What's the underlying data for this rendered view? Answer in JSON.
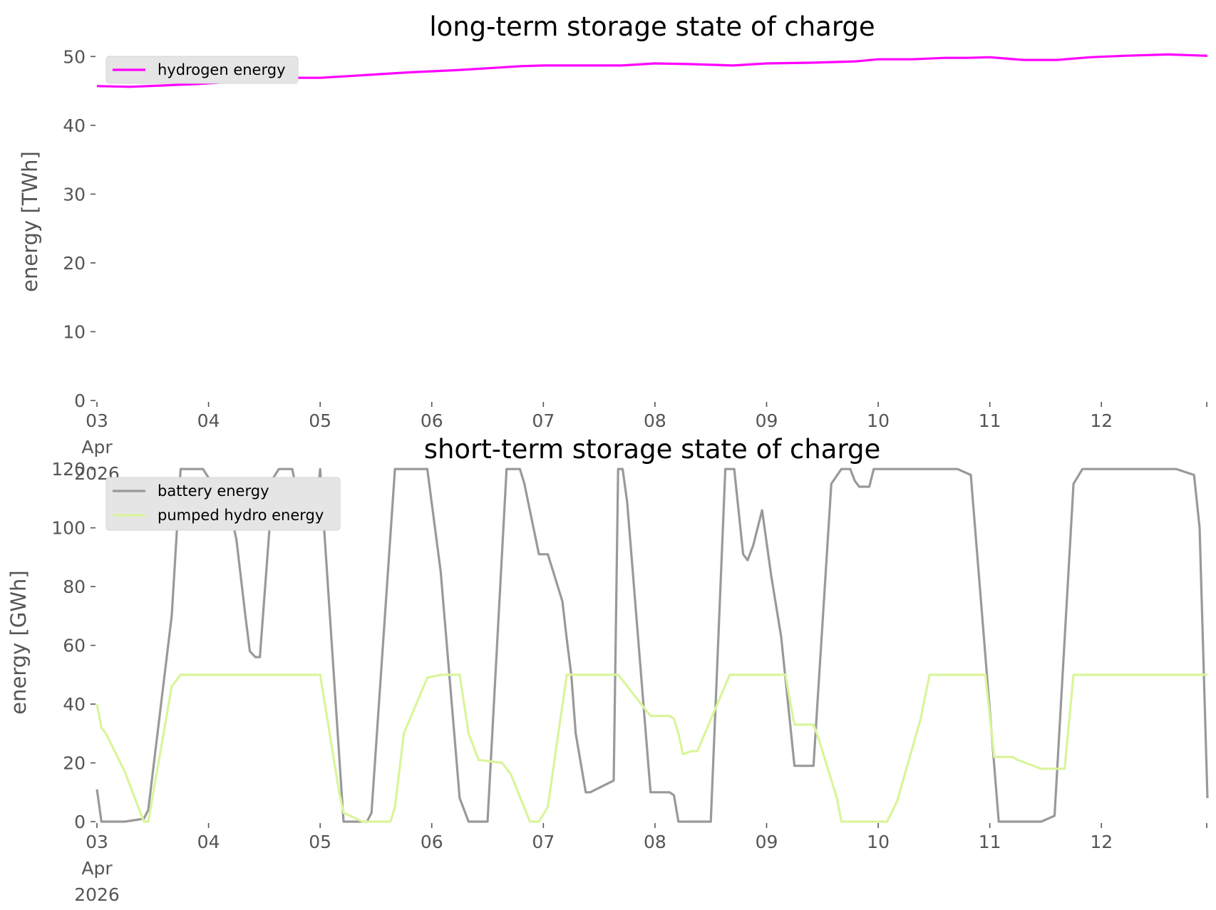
{
  "chart_data": [
    {
      "type": "line",
      "title": "long-term storage state of charge",
      "ylabel": "energy [TWh]",
      "xlabel": "",
      "ylim": [
        0,
        52
      ],
      "yticks": [
        0,
        10,
        20,
        30,
        40,
        50
      ],
      "xlim": [
        0,
        9.95
      ],
      "xticks": [
        0,
        1,
        2,
        3,
        4,
        5,
        6,
        7,
        8,
        9
      ],
      "xtick_labels": [
        [
          "03",
          "Apr",
          "2026"
        ],
        [
          "04"
        ],
        [
          "05"
        ],
        [
          "06"
        ],
        [
          "07"
        ],
        [
          "08"
        ],
        [
          "09"
        ],
        [
          "10"
        ],
        [
          "11"
        ],
        [
          "12"
        ]
      ],
      "grid": false,
      "legend": "top-left",
      "series": [
        {
          "name": "hydrogen energy",
          "color": "#ff00ff",
          "x": [
            0,
            0.3,
            0.6,
            0.9,
            1.2,
            1.5,
            1.8,
            2.0,
            2.4,
            2.8,
            3.2,
            3.6,
            3.8,
            4.0,
            4.3,
            4.7,
            5.0,
            5.3,
            5.7,
            6.0,
            6.4,
            6.8,
            7.0,
            7.3,
            7.6,
            7.8,
            8.0,
            8.3,
            8.6,
            8.9,
            9.2,
            9.6,
            9.95
          ],
          "y": [
            45.7,
            45.6,
            45.8,
            46.0,
            46.3,
            46.6,
            46.9,
            46.9,
            47.3,
            47.7,
            48.0,
            48.4,
            48.6,
            48.7,
            48.7,
            48.7,
            49.0,
            48.9,
            48.7,
            49.0,
            49.1,
            49.3,
            49.6,
            49.6,
            49.8,
            49.8,
            49.9,
            49.5,
            49.5,
            49.9,
            50.1,
            50.3,
            50.1
          ]
        }
      ]
    },
    {
      "type": "line",
      "title": "short-term storage state of charge",
      "ylabel": "energy [GWh]",
      "xlabel": "",
      "ylim": [
        0,
        122
      ],
      "yticks": [
        0,
        20,
        40,
        60,
        80,
        100,
        120
      ],
      "xlim": [
        0,
        9.95
      ],
      "xticks": [
        0,
        1,
        2,
        3,
        4,
        5,
        6,
        7,
        8,
        9
      ],
      "xtick_labels": [
        [
          "03",
          "Apr",
          "2026"
        ],
        [
          "04"
        ],
        [
          "05"
        ],
        [
          "06"
        ],
        [
          "07"
        ],
        [
          "08"
        ],
        [
          "09"
        ],
        [
          "10"
        ],
        [
          "11"
        ],
        [
          "12"
        ]
      ],
      "grid": false,
      "legend": "top-left",
      "series": [
        {
          "name": "battery energy",
          "color": "#999999",
          "x": [
            0,
            0.04,
            0.25,
            0.42,
            0.46,
            0.67,
            0.75,
            0.95,
            1.05,
            1.17,
            1.25,
            1.33,
            1.37,
            1.42,
            1.46,
            1.58,
            1.63,
            1.75,
            1.83,
            1.88,
            1.96,
            2.0,
            2.21,
            2.42,
            2.46,
            2.67,
            2.75,
            2.96,
            3.08,
            3.25,
            3.33,
            3.5,
            3.67,
            3.79,
            3.83,
            3.96,
            4.04,
            4.17,
            4.21,
            4.25,
            4.29,
            4.38,
            4.42,
            4.63,
            4.67,
            4.71,
            4.75,
            4.96,
            5.04,
            5.13,
            5.17,
            5.21,
            5.5,
            5.63,
            5.71,
            5.79,
            5.83,
            5.88,
            5.96,
            6.04,
            6.13,
            6.25,
            6.33,
            6.42,
            6.58,
            6.67,
            6.75,
            6.79,
            6.83,
            6.88,
            6.92,
            6.96,
            7.08,
            7.17,
            7.25,
            7.42,
            7.58,
            7.71,
            7.83,
            8.08,
            8.21,
            8.46,
            8.58,
            8.75,
            8.83,
            8.96,
            9.04,
            9.13,
            9.17,
            9.37,
            9.42,
            9.46,
            9.67,
            9.83,
            9.88,
            9.95
          ],
          "y": [
            11,
            0,
            0,
            1,
            4,
            70,
            120,
            120,
            114,
            110,
            96,
            70,
            58,
            56,
            56,
            117,
            120,
            120,
            105,
            105,
            105,
            120,
            0,
            0,
            3,
            120,
            120,
            120,
            85,
            8,
            0,
            0,
            120,
            120,
            115,
            91,
            91,
            75,
            62,
            50,
            30,
            10,
            10,
            14,
            120,
            120,
            109,
            10,
            10,
            10,
            9,
            0,
            0,
            120,
            120,
            91,
            89,
            94,
            106,
            84,
            63,
            19,
            19,
            19,
            115,
            120,
            120,
            116,
            114,
            114,
            114,
            120,
            120,
            120,
            120,
            120,
            120,
            120,
            118,
            0,
            0,
            0,
            2,
            115,
            120,
            120,
            120,
            120,
            120,
            120,
            120,
            120,
            120,
            118,
            100,
            8
          ]
        },
        {
          "name": "pumped hydro energy",
          "color": "#d9f59a",
          "x": [
            0,
            0.04,
            0.08,
            0.25,
            0.42,
            0.46,
            0.67,
            0.75,
            1.96,
            2.0,
            2.17,
            2.21,
            2.38,
            2.42,
            2.63,
            2.67,
            2.75,
            2.96,
            3.08,
            3.13,
            3.17,
            3.25,
            3.33,
            3.42,
            3.63,
            3.71,
            3.88,
            3.96,
            4.04,
            4.13,
            4.21,
            4.25,
            4.33,
            4.42,
            4.58,
            4.67,
            4.96,
            5.0,
            5.04,
            5.13,
            5.17,
            5.21,
            5.25,
            5.33,
            5.38,
            5.67,
            5.75,
            5.96,
            6.08,
            6.17,
            6.21,
            6.25,
            6.42,
            6.46,
            6.63,
            6.67,
            7.08,
            7.17,
            7.38,
            7.46,
            7.58,
            7.67,
            7.75,
            7.83,
            7.96,
            8.04,
            8.21,
            8.25,
            8.46,
            8.54,
            8.67,
            8.75,
            9.95
          ],
          "y": [
            40,
            32,
            30,
            17,
            0,
            0,
            46,
            50,
            50,
            50,
            10,
            3,
            0,
            0,
            0,
            5,
            30,
            49,
            50,
            50,
            50,
            50,
            30,
            21,
            20,
            16,
            0,
            0,
            5,
            29,
            50,
            50,
            50,
            50,
            50,
            50,
            36,
            36,
            36,
            36,
            35,
            30,
            23,
            24,
            24,
            50,
            50,
            50,
            50,
            50,
            41,
            33,
            33,
            29,
            8,
            0,
            0,
            7,
            35,
            50,
            50,
            50,
            50,
            50,
            50,
            22,
            22,
            21,
            18,
            18,
            18,
            50,
            50
          ]
        }
      ]
    }
  ]
}
